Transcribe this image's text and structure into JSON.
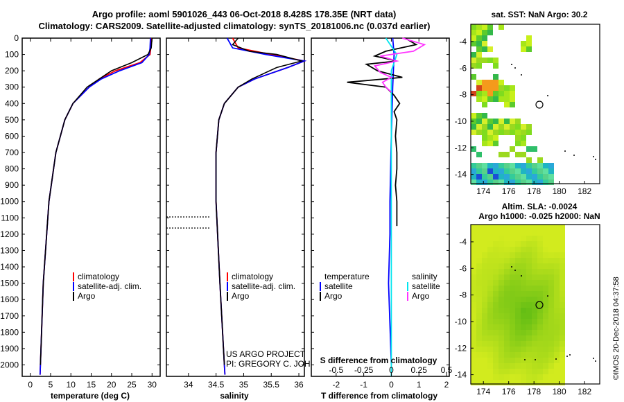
{
  "header": {
    "line1": "Argo profile: aoml 5901026_443 06-Oct-2018 8.428S 178.35E (NRT data)",
    "line2": "Climatology: CARS2009. Satellite-adjusted climatology: synTS_20181006.nc (0.037d earlier)"
  },
  "depth_ticks": [
    "0",
    "100",
    "200",
    "300",
    "400",
    "500",
    "600",
    "700",
    "800",
    "900",
    "1000",
    "1100",
    "1200",
    "1300",
    "1400",
    "1500",
    "1600",
    "1700",
    "1800",
    "1900",
    "2000"
  ],
  "colors": {
    "climatology": "#ff0000",
    "satellite": "#0000ff",
    "argo": "#000000",
    "sal_satellite": "#00e5ee",
    "sal_argo": "#ff33ff"
  },
  "chart_data": [
    {
      "type": "line",
      "id": "temperature",
      "xlabel": "temperature (deg C)",
      "xlim": [
        -2,
        32
      ],
      "ylim": [
        2070,
        0
      ],
      "xticks": [
        "0",
        "5",
        "10",
        "15",
        "20",
        "25",
        "30"
      ],
      "legend": [
        "climatology",
        "satellite-adj. clim.",
        "Argo"
      ],
      "series": [
        {
          "name": "climatology",
          "depth": [
            0,
            60,
            100,
            150,
            200,
            250,
            300,
            400,
            500,
            700,
            1000,
            1500,
            2000,
            2060
          ],
          "values": [
            29.9,
            29.7,
            29.5,
            27,
            21,
            17,
            14.5,
            10.5,
            8.5,
            6.3,
            4.6,
            3.2,
            2.5,
            2.4
          ]
        },
        {
          "name": "satellite-adj. clim.",
          "depth": [
            0,
            60,
            100,
            150,
            200,
            250,
            300,
            400,
            500,
            700,
            1000,
            1500,
            2000,
            2060
          ],
          "values": [
            29.6,
            29.5,
            29.3,
            27.5,
            22,
            17.5,
            14.5,
            10.5,
            8.5,
            6.3,
            4.6,
            3.2,
            2.5,
            2.4
          ]
        },
        {
          "name": "Argo",
          "depth": [
            0,
            60,
            100,
            150,
            200,
            250,
            300,
            400,
            500,
            700,
            1000,
            1500,
            2000
          ],
          "values": [
            30,
            29.8,
            29,
            25,
            20,
            17,
            14,
            10.5,
            8.5,
            6.3,
            4.6,
            3.2,
            2.5
          ]
        }
      ]
    },
    {
      "type": "line",
      "id": "salinity",
      "xlabel": "salinity",
      "xlim": [
        33.6,
        36.1
      ],
      "ylim": [
        2070,
        0
      ],
      "xticks": [
        "34",
        "34.5",
        "35",
        "35.5",
        "36"
      ],
      "legend": [
        "climatology",
        "satellite-adj. clim.",
        "Argo"
      ],
      "annotations": [
        "US ARGO PROJECT",
        "PI: GREGORY C. JOHNSON"
      ],
      "series": [
        {
          "name": "climatology",
          "depth": [
            0,
            60,
            100,
            140,
            180,
            250,
            300,
            400,
            500,
            700,
            1000,
            1500,
            2000,
            2060
          ],
          "values": [
            34.8,
            34.9,
            35.5,
            36.1,
            35.8,
            35.2,
            34.9,
            34.65,
            34.55,
            34.5,
            34.5,
            34.57,
            34.65,
            34.66
          ]
        },
        {
          "name": "satellite-adj. clim.",
          "depth": [
            0,
            60,
            100,
            140,
            180,
            250,
            300,
            400,
            500,
            700,
            1000,
            1500,
            2000,
            2060
          ],
          "values": [
            34.7,
            34.8,
            35.4,
            36.1,
            35.8,
            35.2,
            34.9,
            34.65,
            34.55,
            34.5,
            34.5,
            34.57,
            34.65,
            34.66
          ]
        },
        {
          "name": "Argo",
          "depth": [
            0,
            40,
            60,
            80,
            100,
            140,
            180,
            250,
            300,
            400,
            500,
            700,
            1000,
            1500,
            2000
          ],
          "values": [
            34.9,
            34.8,
            34.95,
            35.1,
            35.6,
            36.05,
            35.6,
            35.15,
            34.9,
            34.65,
            34.55,
            34.5,
            34.5,
            34.57,
            34.65
          ]
        }
      ]
    },
    {
      "type": "line",
      "id": "differences",
      "xlabel": "T difference from climatology",
      "xlim": [
        -2.9,
        2.1
      ],
      "ylim": [
        2070,
        0
      ],
      "xticks": [
        "-2",
        "-1",
        "0",
        "1",
        "2"
      ],
      "s_label": "S difference from climatology",
      "s_ticks": [
        "-0.5",
        "-0.25",
        "0",
        "0.25",
        "0.5"
      ],
      "legend_t_title": "temperature",
      "legend_s_title": "salinity",
      "legend": [
        "satellite",
        "Argo",
        "satellite",
        "Argo"
      ],
      "series": [
        {
          "name": "T satellite",
          "depth": [
            0,
            100,
            300,
            600,
            1000,
            1200,
            1500,
            2000
          ],
          "values": [
            0.05,
            0.1,
            0.05,
            0,
            -0.05,
            -0.05,
            -0.1,
            0
          ]
        },
        {
          "name": "T Argo",
          "depth": [
            0,
            40,
            80,
            110,
            140,
            160,
            200,
            240,
            270,
            300,
            350,
            400,
            450,
            500,
            600,
            700,
            800,
            900,
            1000,
            1100,
            1150
          ],
          "values": [
            0.5,
            0.9,
            -0.2,
            -0.6,
            0.2,
            -0.9,
            -0.5,
            0.4,
            -1.6,
            -0.2,
            0.1,
            0.3,
            0.1,
            0.2,
            0.15,
            0.2,
            0.2,
            0.15,
            0.2,
            0.2,
            0.2
          ]
        },
        {
          "name": "S satellite",
          "depth": [
            0,
            100,
            200,
            300,
            500,
            800,
            1200,
            1600,
            2000,
            2070
          ],
          "values": [
            -0.05,
            0.05,
            0,
            0,
            0,
            0,
            0,
            0,
            0,
            0
          ]
        },
        {
          "name": "S Argo",
          "depth": [
            0,
            40,
            80,
            110,
            140,
            170,
            210,
            240,
            270,
            300,
            330
          ],
          "values": [
            0.1,
            0.3,
            0.2,
            -0.1,
            0.05,
            -0.15,
            -0.1,
            0,
            -0.08,
            -0.05,
            0
          ]
        }
      ]
    },
    {
      "type": "heatmap",
      "id": "sst_map",
      "title": "sat. SST: NaN Argo: 30.2",
      "xticks": [
        "174",
        "176",
        "178",
        "180",
        "182"
      ],
      "yticks": [
        "-4",
        "-6",
        "-8",
        "-10",
        "-12",
        "-14"
      ],
      "xlim": [
        173,
        183.2
      ],
      "ylim": [
        -14.7,
        -2.7
      ],
      "argo_position": [
        178.35,
        -8.43
      ]
    },
    {
      "type": "heatmap",
      "id": "sla_map",
      "title_line1": "Altim. SLA: -0.0024",
      "title_line2": "Argo h1000: -0.025 h2000: NaN",
      "xticks": [
        "174",
        "176",
        "178",
        "180",
        "182"
      ],
      "yticks": [
        "-4",
        "-6",
        "-8",
        "-10",
        "-12",
        "-14"
      ],
      "xlim": [
        173,
        183.2
      ],
      "ylim": [
        -14.7,
        -2.7
      ],
      "argo_position": [
        178.35,
        -8.43
      ]
    }
  ],
  "watermark": "©IMOS 20-Dec-2018 04:37:58"
}
